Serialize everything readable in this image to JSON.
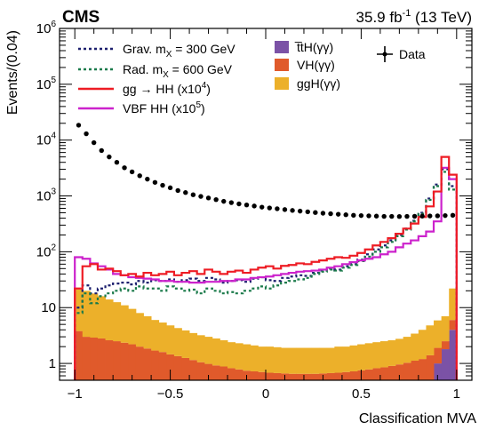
{
  "header": {
    "experiment": "CMS",
    "lumi_value": "35.9 fb",
    "lumi_exp": "-1",
    "lumi_energy": "(13 TeV)"
  },
  "chart_data": {
    "type": "histogram",
    "xlabel": "Classification MVA",
    "ylabel": "Events/(0.04)",
    "xlim": [
      -1.08,
      1.08
    ],
    "ylim": [
      0.5,
      1000000
    ],
    "y_scale": "log",
    "bin_width": 0.04,
    "x_ticks": [
      {
        "value": -1,
        "label": "−1"
      },
      {
        "value": -0.5,
        "label": "−0.5"
      },
      {
        "value": 0,
        "label": "0"
      },
      {
        "value": 0.5,
        "label": "0.5"
      },
      {
        "value": 1,
        "label": "1"
      }
    ],
    "y_ticks": [
      {
        "value": 1,
        "label": "1",
        "exp": ""
      },
      {
        "value": 10,
        "label": "10",
        "exp": ""
      },
      {
        "value": 100,
        "label": "10",
        "exp": "2"
      },
      {
        "value": 1000,
        "label": "10",
        "exp": "3"
      },
      {
        "value": 10000,
        "label": "10",
        "exp": "4"
      },
      {
        "value": 100000,
        "label": "10",
        "exp": "5"
      },
      {
        "value": 1000000,
        "label": "10",
        "exp": "6"
      }
    ],
    "legend": {
      "placement": "top",
      "items": [
        {
          "key": "grav",
          "label": "Grav. m",
          "sub": "X",
          "tail": " = 300 GeV",
          "sup": "",
          "after": ""
        },
        {
          "key": "rad",
          "label": "Rad. m",
          "sub": "X",
          "tail": " = 600 GeV",
          "sup": "",
          "after": ""
        },
        {
          "key": "gghh",
          "label": "gg → HH (x10",
          "sub": "",
          "tail": "",
          "sup": "4",
          "after": ")"
        },
        {
          "key": "vbf",
          "label": "VBF HH (x10",
          "sub": "",
          "tail": "",
          "sup": "5",
          "after": ")"
        },
        {
          "key": "tth",
          "label": "t̅tH(γγ)",
          "sub": "",
          "tail": "",
          "sup": "",
          "after": ""
        },
        {
          "key": "vh",
          "label": "VH(γγ)",
          "sub": "",
          "tail": "",
          "sup": "",
          "after": ""
        },
        {
          "key": "ggh",
          "label": "ggH(γγ)",
          "sub": "",
          "tail": "",
          "sup": "",
          "after": ""
        },
        {
          "key": "data",
          "label": "Data",
          "sub": "",
          "tail": "",
          "sup": "",
          "after": ""
        }
      ]
    },
    "colors": {
      "tth": "#7b52a6",
      "vh": "#e05a2b",
      "ggh": "#ecb02a",
      "grav": "#1c1f6e",
      "rad": "#1a7a4a",
      "gghh": "#ee1c24",
      "vbf": "#cc22cc",
      "data": "#000000"
    },
    "stack": {
      "tth": [
        0.002,
        0.002,
        0.002,
        0.002,
        0.002,
        0.002,
        0.002,
        0.002,
        0.002,
        0.002,
        0.002,
        0.002,
        0.002,
        0.002,
        0.002,
        0.002,
        0.002,
        0.002,
        0.002,
        0.002,
        0.002,
        0.002,
        0.002,
        0.002,
        0.002,
        0.002,
        0.002,
        0.002,
        0.002,
        0.002,
        0.002,
        0.002,
        0.002,
        0.002,
        0.002,
        0.002,
        0.002,
        0.002,
        0.002,
        0.002,
        0.002,
        0.002,
        0.01,
        0.03,
        0.07,
        0.15,
        0.4,
        1.0,
        1.8,
        4.0
      ],
      "vh": [
        3.8,
        3.0,
        2.9,
        2.8,
        2.6,
        2.5,
        2.35,
        2.2,
        2.0,
        1.85,
        1.7,
        1.6,
        1.45,
        1.35,
        1.25,
        1.15,
        1.05,
        0.98,
        0.92,
        0.88,
        0.82,
        0.78,
        0.74,
        0.72,
        0.7,
        0.68,
        0.67,
        0.66,
        0.65,
        0.65,
        0.65,
        0.65,
        0.66,
        0.67,
        0.68,
        0.7,
        0.72,
        0.75,
        0.78,
        0.82,
        0.85,
        0.9,
        0.95,
        1.0,
        1.05,
        1.05,
        1.0,
        0.9,
        0.7,
        2.0
      ],
      "ggh": [
        17.2,
        17.0,
        15.0,
        13.2,
        11.4,
        10.0,
        8.65,
        7.3,
        6.0,
        5.15,
        4.3,
        3.8,
        3.35,
        2.95,
        2.65,
        2.35,
        2.15,
        2.02,
        1.88,
        1.72,
        1.58,
        1.52,
        1.46,
        1.38,
        1.3,
        1.32,
        1.28,
        1.24,
        1.25,
        1.25,
        1.25,
        1.25,
        1.24,
        1.23,
        1.32,
        1.3,
        1.38,
        1.45,
        1.52,
        1.58,
        1.65,
        1.7,
        1.8,
        1.97,
        2.3,
        2.8,
        3.4,
        4.0,
        4.5,
        16.0
      ]
    },
    "signals": {
      "grav": [
        10,
        25,
        18,
        22,
        25,
        27,
        28,
        26,
        30,
        28,
        31,
        30,
        32,
        29,
        31,
        33,
        30,
        34,
        32,
        28,
        30,
        31,
        29,
        33,
        35,
        31,
        30,
        34,
        36,
        38,
        37,
        42,
        46,
        50,
        48,
        55,
        60,
        72,
        90,
        110,
        130,
        160,
        200,
        260,
        360,
        500,
        900,
        1600,
        3000,
        1500
      ],
      "rad": [
        8,
        18,
        12,
        16,
        18,
        20,
        22,
        20,
        24,
        22,
        22,
        20,
        24,
        22,
        20,
        21,
        18,
        22,
        20,
        18,
        19,
        18,
        20,
        22,
        24,
        22,
        25,
        28,
        30,
        32,
        34,
        40,
        44,
        48,
        46,
        52,
        58,
        68,
        82,
        100,
        120,
        150,
        190,
        250,
        350,
        480,
        850,
        1500,
        2700,
        1300
      ],
      "gghh": [
        22,
        55,
        60,
        48,
        50,
        45,
        38,
        40,
        36,
        42,
        38,
        40,
        44,
        38,
        42,
        45,
        40,
        48,
        44,
        40,
        44,
        46,
        42,
        48,
        52,
        55,
        50,
        56,
        58,
        62,
        60,
        66,
        70,
        75,
        80,
        78,
        85,
        95,
        110,
        130,
        150,
        175,
        210,
        260,
        320,
        420,
        650,
        1200,
        5000,
        2400
      ],
      "vbf": [
        80,
        75,
        62,
        55,
        48,
        40,
        38,
        35,
        34,
        33,
        32,
        30,
        30,
        29,
        29,
        28,
        28,
        29,
        29,
        30,
        30,
        32,
        32,
        34,
        35,
        36,
        38,
        40,
        42,
        44,
        45,
        46,
        48,
        52,
        55,
        60,
        65,
        70,
        75,
        80,
        90,
        100,
        120,
        140,
        160,
        190,
        230,
        350,
        3200,
        2000
      ]
    },
    "data_points": {
      "x": [
        -0.98,
        -0.94,
        -0.9,
        -0.86,
        -0.82,
        -0.78,
        -0.74,
        -0.7,
        -0.66,
        -0.62,
        -0.58,
        -0.54,
        -0.5,
        -0.46,
        -0.42,
        -0.38,
        -0.34,
        -0.3,
        -0.26,
        -0.22,
        -0.18,
        -0.14,
        -0.1,
        -0.06,
        -0.02,
        0.02,
        0.06,
        0.1,
        0.14,
        0.18,
        0.22,
        0.26,
        0.3,
        0.34,
        0.38,
        0.42,
        0.46,
        0.5,
        0.54,
        0.58,
        0.62,
        0.66,
        0.7,
        0.74,
        0.78,
        0.82,
        0.86,
        0.9,
        0.94,
        0.98
      ],
      "y": [
        18500,
        13000,
        9000,
        6500,
        5000,
        4000,
        3200,
        2700,
        2300,
        2000,
        1750,
        1550,
        1400,
        1250,
        1150,
        1050,
        980,
        920,
        860,
        800,
        760,
        720,
        690,
        660,
        630,
        610,
        590,
        570,
        550,
        535,
        520,
        505,
        490,
        480,
        470,
        460,
        450,
        445,
        440,
        435,
        430,
        430,
        428,
        430,
        432,
        435,
        438,
        440,
        445,
        450
      ]
    }
  }
}
